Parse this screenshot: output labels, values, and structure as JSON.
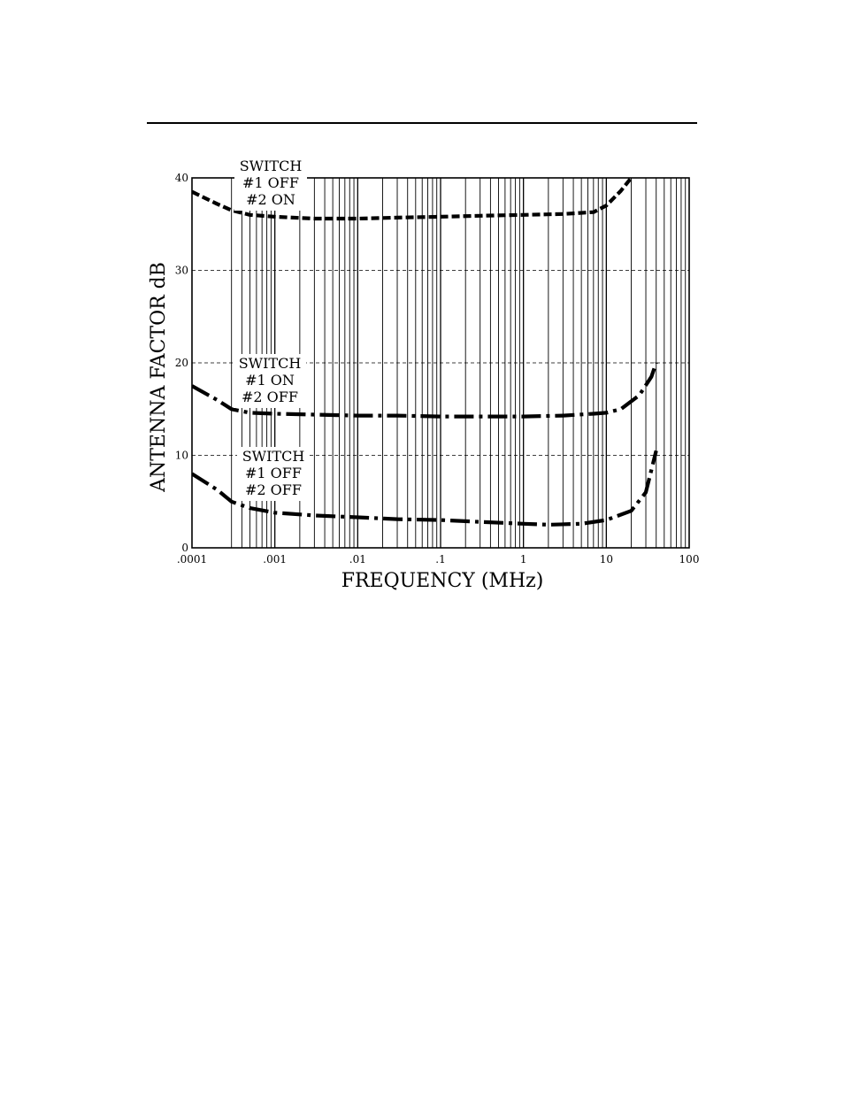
{
  "chart_data": {
    "type": "line",
    "xlabel": "FREQUENCY (MHz)",
    "ylabel": "ANTENNA FACTOR dB",
    "x_scale": "log",
    "xlim": [
      0.0001,
      100
    ],
    "ylim": [
      0,
      40
    ],
    "x_ticks": [
      {
        "value": 0.0001,
        "label": ".0001"
      },
      {
        "value": 0.001,
        "label": ".001"
      },
      {
        "value": 0.01,
        "label": ".01"
      },
      {
        "value": 0.1,
        "label": ".1"
      },
      {
        "value": 1,
        "label": "1"
      },
      {
        "value": 10,
        "label": "10"
      },
      {
        "value": 100,
        "label": "100"
      }
    ],
    "y_ticks": [
      {
        "value": 0,
        "label": "0"
      },
      {
        "value": 10,
        "label": "10"
      },
      {
        "value": 20,
        "label": "20"
      },
      {
        "value": 30,
        "label": "30"
      },
      {
        "value": 40,
        "label": "40"
      }
    ],
    "grid": "vertical log gridlines solid; horizontal gridlines dashed",
    "series": [
      {
        "name": "SWITCH #1 OFF #2 ON",
        "label_lines": [
          "SWITCH",
          "#1 OFF",
          "#2 ON"
        ],
        "line_style": "dashed",
        "x": [
          0.0001,
          0.0002,
          0.0003,
          0.0005,
          0.001,
          0.003,
          0.01,
          0.03,
          0.1,
          0.3,
          1,
          3,
          7,
          10,
          15,
          20
        ],
        "y": [
          38.5,
          37.2,
          36.5,
          36.0,
          35.8,
          35.6,
          35.6,
          35.7,
          35.8,
          35.9,
          36.0,
          36.1,
          36.3,
          37.0,
          38.6,
          40.0
        ]
      },
      {
        "name": "SWITCH #1 ON #2 OFF",
        "label_lines": [
          "SWITCH",
          "#1 ON",
          "#2 OFF"
        ],
        "line_style": "dash-dot",
        "x": [
          0.0001,
          0.0002,
          0.0003,
          0.0005,
          0.001,
          0.003,
          0.01,
          0.03,
          0.1,
          0.3,
          1,
          3,
          7,
          10,
          15,
          25,
          35,
          40
        ],
        "y": [
          17.5,
          16.0,
          15.0,
          14.6,
          14.5,
          14.4,
          14.3,
          14.3,
          14.2,
          14.2,
          14.2,
          14.3,
          14.5,
          14.6,
          15.0,
          16.5,
          18.5,
          20.0
        ]
      },
      {
        "name": "SWITCH #1 OFF #2 OFF",
        "label_lines": [
          "SWITCH",
          "#1 OFF",
          "#2 OFF"
        ],
        "line_style": "dash-dot",
        "x": [
          0.0001,
          0.0002,
          0.0003,
          0.0005,
          0.001,
          0.003,
          0.01,
          0.03,
          0.1,
          0.3,
          1,
          2,
          5,
          10,
          20,
          30,
          40
        ],
        "y": [
          8.0,
          6.3,
          5.0,
          4.3,
          3.8,
          3.5,
          3.3,
          3.1,
          3.0,
          2.8,
          2.6,
          2.5,
          2.6,
          3.0,
          4.0,
          6.0,
          10.5
        ]
      }
    ]
  }
}
